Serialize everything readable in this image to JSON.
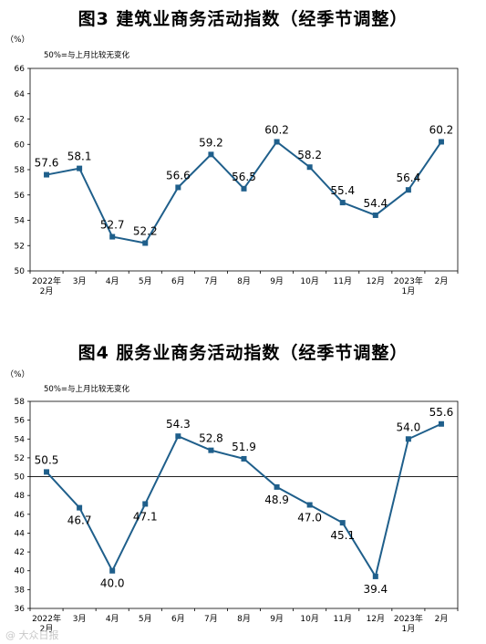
{
  "charts": [
    {
      "title": "图3  建筑业商务活动指数（经季节调整）",
      "unit_label": "（%）",
      "note": "50%=与上月比较无变化",
      "chart_data": {
        "type": "line",
        "title": "图3  建筑业商务活动指数（经季节调整）",
        "categories": [
          "2022年 2月",
          "3月",
          "4月",
          "5月",
          "6月",
          "7月",
          "8月",
          "9月",
          "10月",
          "11月",
          "12月",
          "2023年 1月",
          "2月"
        ],
        "tick_labels": [
          [
            "2022年",
            "2月"
          ],
          [
            "3月"
          ],
          [
            "4月"
          ],
          [
            "5月"
          ],
          [
            "6月"
          ],
          [
            "7月"
          ],
          [
            "8月"
          ],
          [
            "9月"
          ],
          [
            "10月"
          ],
          [
            "11月"
          ],
          [
            "12月"
          ],
          [
            "2023年",
            "1月"
          ],
          [
            "2月"
          ]
        ],
        "values": [
          57.6,
          58.1,
          52.7,
          52.2,
          56.6,
          59.2,
          56.5,
          60.2,
          58.2,
          55.4,
          54.4,
          56.4,
          60.2
        ],
        "ylim": [
          50,
          66
        ],
        "yticks": [
          50,
          52,
          54,
          56,
          58,
          60,
          62,
          64,
          66
        ],
        "reference_line": null,
        "grid": false,
        "line_color": "#1f5f8b"
      }
    },
    {
      "title": "图4  服务业商务活动指数（经季节调整）",
      "unit_label": "（%）",
      "note": "50%=与上月比较无变化",
      "chart_data": {
        "type": "line",
        "title": "图4  服务业商务活动指数（经季节调整）",
        "categories": [
          "2022年 2月",
          "3月",
          "4月",
          "5月",
          "6月",
          "7月",
          "8月",
          "9月",
          "10月",
          "11月",
          "12月",
          "2023年 1月",
          "2月"
        ],
        "tick_labels": [
          [
            "2022年",
            "2月"
          ],
          [
            "3月"
          ],
          [
            "4月"
          ],
          [
            "5月"
          ],
          [
            "6月"
          ],
          [
            "7月"
          ],
          [
            "8月"
          ],
          [
            "9月"
          ],
          [
            "10月"
          ],
          [
            "11月"
          ],
          [
            "12月"
          ],
          [
            "2023年",
            "1月"
          ],
          [
            "2月"
          ]
        ],
        "values": [
          50.5,
          46.7,
          40.0,
          47.1,
          54.3,
          52.8,
          51.9,
          48.9,
          47.0,
          45.1,
          39.4,
          54.0,
          55.6
        ],
        "value_labels": [
          "50.5",
          "46.7",
          "40.0",
          "47.1",
          "54.3",
          "52.8",
          "51.9",
          "48.9",
          "47.0",
          "45.1",
          "39.4",
          "54.0",
          "55.6"
        ],
        "ylim": [
          36,
          58
        ],
        "yticks": [
          36,
          38,
          40,
          42,
          44,
          46,
          48,
          50,
          52,
          54,
          56,
          58
        ],
        "reference_line": 50,
        "grid": false,
        "line_color": "#1f5f8b"
      }
    }
  ]
}
